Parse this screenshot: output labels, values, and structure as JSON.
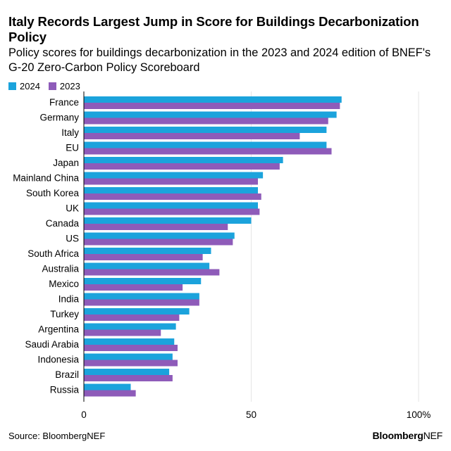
{
  "header": {
    "title": "Italy Records Largest Jump in Score for Buildings Decarbonization Policy",
    "subtitle": "Policy scores for buildings decarbonization in the 2023 and 2024 edition of BNEF's G-20 Zero-Carbon Policy Scoreboard"
  },
  "footer": {
    "source": "Source: BloombergNEF",
    "brand_bold": "Bloomberg",
    "brand_light": "NEF"
  },
  "colors": {
    "s2024": "#1ba3dc",
    "s2023": "#8e5bb9"
  },
  "chart_data": {
    "type": "bar",
    "orientation": "horizontal",
    "categories": [
      "France",
      "Germany",
      "Italy",
      "EU",
      "Japan",
      "Mainland China",
      "South Korea",
      "UK",
      "Canada",
      "US",
      "South Africa",
      "Australia",
      "Mexico",
      "India",
      "Turkey",
      "Argentina",
      "Saudi Arabia",
      "Indonesia",
      "Brazil",
      "Russia"
    ],
    "series": [
      {
        "name": "2024",
        "values": [
          77,
          75.5,
          72.5,
          72.5,
          59.5,
          53.5,
          52,
          52,
          50,
          45,
          38,
          37.5,
          35,
          34.5,
          31.5,
          27.5,
          27,
          26.5,
          25.5,
          14
        ]
      },
      {
        "name": "2023",
        "values": [
          76.5,
          73,
          64.5,
          74,
          58.5,
          52,
          53,
          52.5,
          43,
          44.5,
          35.5,
          40.5,
          29.5,
          34.5,
          28.5,
          23,
          28,
          28,
          26.5,
          15.5
        ]
      }
    ],
    "xlim": [
      0,
      100
    ],
    "xticks": [
      {
        "value": 0,
        "label": "0"
      },
      {
        "value": 50,
        "label": "50"
      },
      {
        "value": 100,
        "label": "100%"
      }
    ],
    "xlabel": "",
    "ylabel": "",
    "legend": "top-left"
  }
}
